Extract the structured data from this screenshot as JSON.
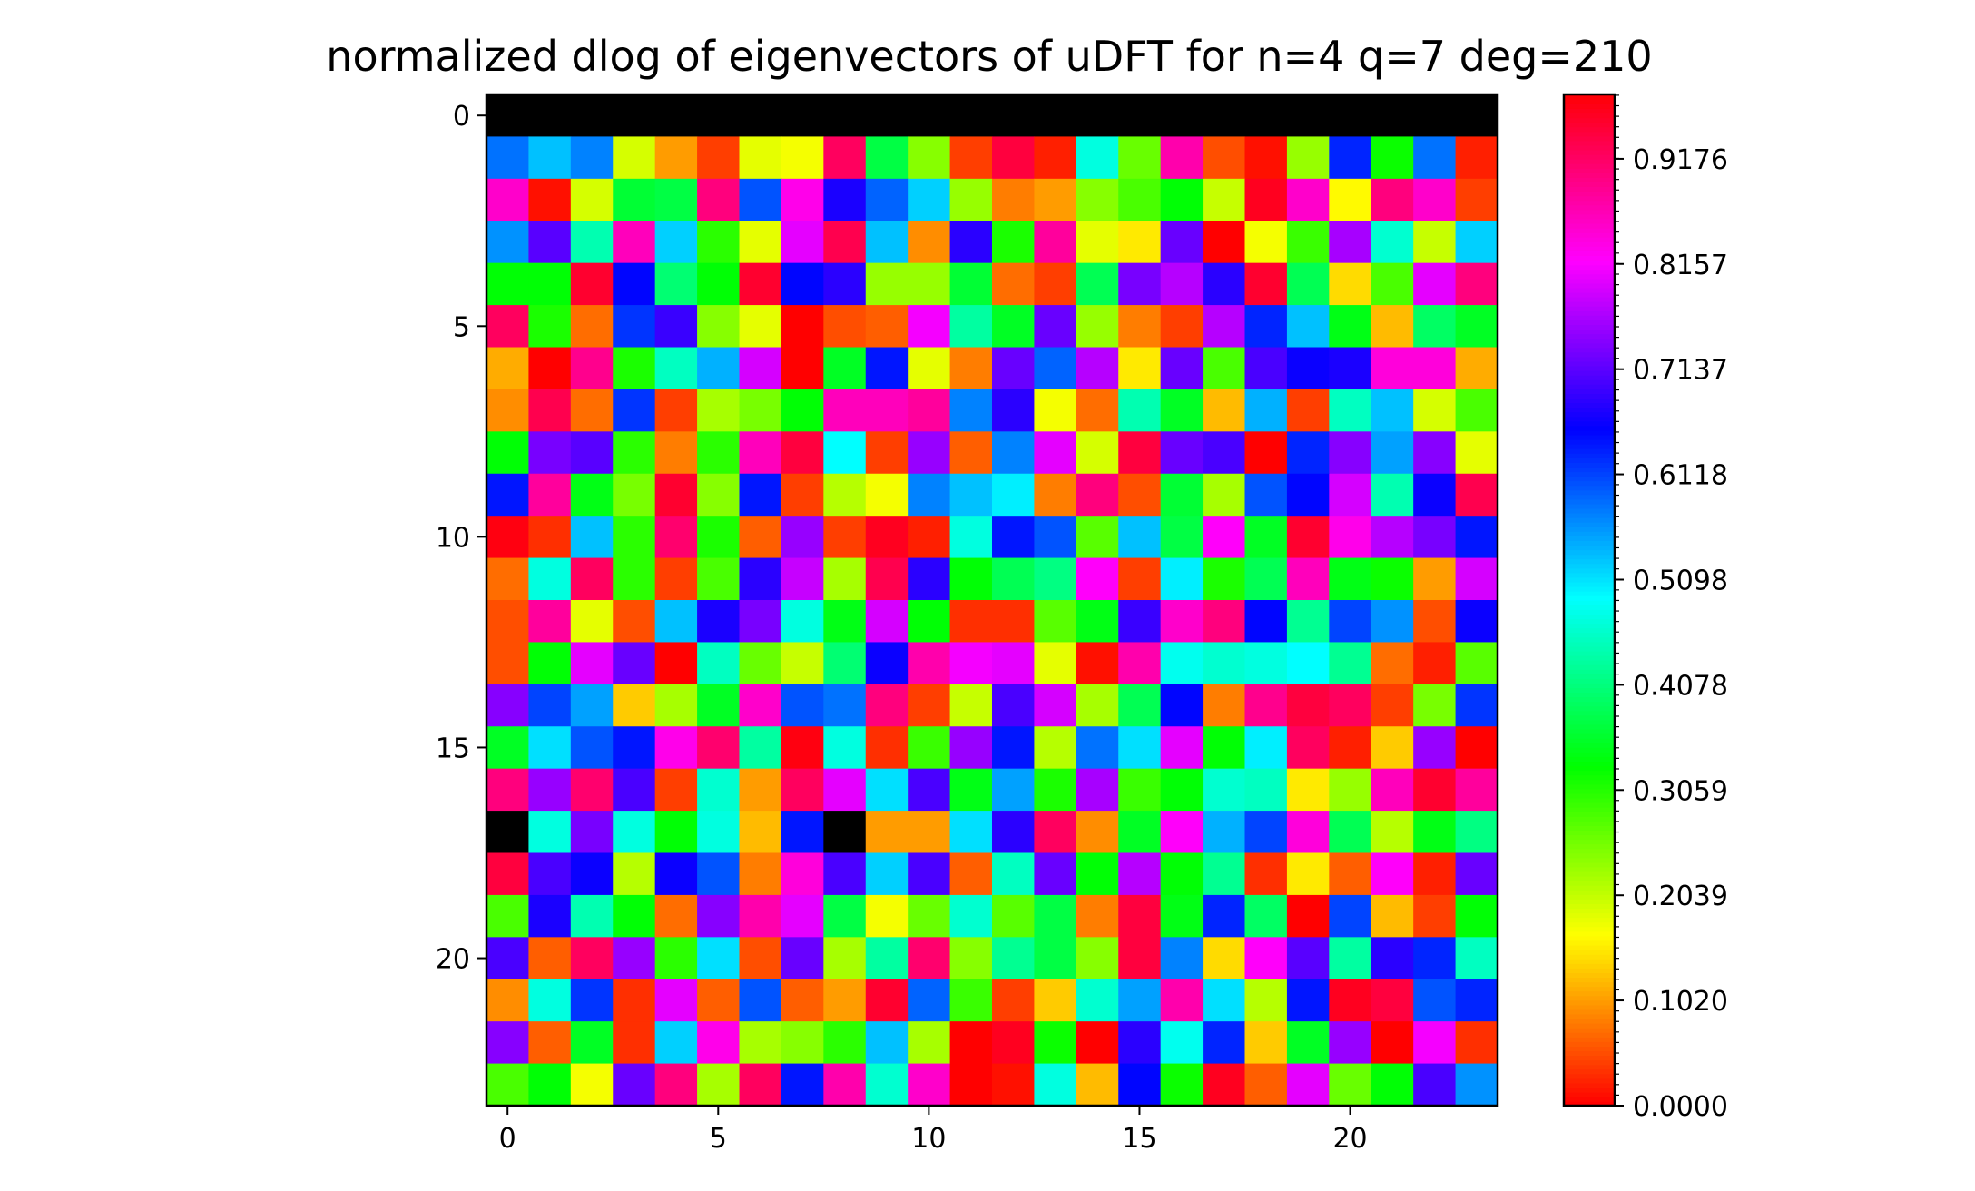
{
  "chart_data": {
    "type": "heatmap",
    "title": "normalized dlog of eigenvectors of uDFT for n=4 q=7 deg=210",
    "rows": 24,
    "cols": 24,
    "x_ticks": [
      "0",
      "5",
      "10",
      "15",
      "20"
    ],
    "y_ticks": [
      "0",
      "5",
      "10",
      "15",
      "20"
    ],
    "colormap": "hsv",
    "colorbar": {
      "range": [
        0,
        0.98
      ],
      "tick_labels": [
        "0.0000",
        "0.1020",
        "0.2039",
        "0.3059",
        "0.4078",
        "0.5098",
        "0.6118",
        "0.7137",
        "0.8157",
        "0.9176"
      ],
      "tick_values": [
        0,
        0.102,
        0.2039,
        0.3059,
        0.4078,
        0.5098,
        0.6118,
        0.7137,
        0.8157,
        0.9176
      ]
    },
    "missing_color": "#000000",
    "values": [
      [
        null,
        null,
        null,
        null,
        null,
        null,
        null,
        null,
        null,
        null,
        null,
        null,
        null,
        null,
        null,
        null,
        null,
        null,
        null,
        null,
        null,
        null,
        null,
        null
      ],
      [
        0.58,
        0.53,
        0.57,
        0.19,
        0.1,
        0.04,
        0.18,
        0.17,
        0.92,
        0.37,
        0.24,
        0.04,
        0.94,
        0.02,
        0.47,
        0.26,
        0.87,
        0.05,
        0.01,
        0.23,
        0.63,
        0.32,
        0.58,
        0.02
      ],
      [
        0.85,
        0.01,
        0.19,
        0.36,
        0.37,
        0.9,
        0.6,
        0.83,
        0.67,
        0.59,
        0.52,
        0.23,
        0.08,
        0.1,
        0.24,
        0.28,
        0.33,
        0.2,
        0.96,
        0.85,
        0.16,
        0.9,
        0.85,
        0.04
      ],
      [
        0.56,
        0.71,
        0.44,
        0.86,
        0.52,
        0.3,
        0.18,
        0.8,
        0.93,
        0.53,
        0.09,
        0.68,
        0.31,
        0.88,
        0.18,
        0.15,
        0.72,
        0.0,
        0.17,
        0.29,
        0.76,
        0.46,
        0.2,
        0.52
      ],
      [
        0.33,
        0.33,
        0.95,
        0.65,
        0.4,
        0.33,
        0.95,
        0.65,
        0.68,
        0.23,
        0.23,
        0.36,
        0.07,
        0.04,
        0.38,
        0.73,
        0.77,
        0.68,
        0.95,
        0.38,
        0.14,
        0.28,
        0.8,
        0.9
      ],
      [
        0.92,
        0.31,
        0.07,
        0.62,
        0.69,
        0.24,
        0.18,
        0.0,
        0.05,
        0.06,
        0.81,
        0.43,
        0.35,
        0.72,
        0.23,
        0.08,
        0.04,
        0.77,
        0.63,
        0.53,
        0.34,
        0.12,
        0.39,
        0.35
      ],
      [
        0.11,
        0.0,
        0.89,
        0.31,
        0.45,
        0.54,
        0.79,
        0.0,
        0.35,
        0.64,
        0.18,
        0.08,
        0.72,
        0.59,
        0.77,
        0.15,
        0.72,
        0.28,
        0.7,
        0.66,
        0.67,
        0.84,
        0.84,
        0.11
      ],
      [
        0.09,
        0.93,
        0.07,
        0.62,
        0.04,
        0.22,
        0.25,
        0.33,
        0.86,
        0.86,
        0.88,
        0.57,
        0.68,
        0.17,
        0.07,
        0.44,
        0.35,
        0.12,
        0.54,
        0.04,
        0.45,
        0.53,
        0.19,
        0.28
      ],
      [
        0.33,
        0.73,
        0.71,
        0.3,
        0.08,
        0.3,
        0.86,
        0.94,
        0.49,
        0.04,
        0.75,
        0.06,
        0.57,
        0.8,
        0.19,
        0.94,
        0.72,
        0.7,
        0.98,
        0.63,
        0.74,
        0.55,
        0.74,
        0.18
      ],
      [
        0.64,
        0.88,
        0.34,
        0.25,
        0.95,
        0.24,
        0.64,
        0.04,
        0.21,
        0.17,
        0.57,
        0.53,
        0.5,
        0.08,
        0.9,
        0.05,
        0.36,
        0.22,
        0.6,
        0.65,
        0.79,
        0.44,
        0.66,
        0.93
      ],
      [
        0.97,
        0.03,
        0.53,
        0.3,
        0.91,
        0.31,
        0.06,
        0.75,
        0.04,
        0.96,
        0.02,
        0.47,
        0.64,
        0.6,
        0.27,
        0.53,
        0.37,
        0.82,
        0.35,
        0.95,
        0.83,
        0.77,
        0.73,
        0.64
      ],
      [
        0.07,
        0.47,
        0.92,
        0.3,
        0.04,
        0.28,
        0.68,
        0.78,
        0.22,
        0.93,
        0.68,
        0.33,
        0.38,
        0.41,
        0.82,
        0.04,
        0.5,
        0.31,
        0.38,
        0.86,
        0.34,
        0.32,
        0.1,
        0.79
      ],
      [
        0.05,
        0.88,
        0.18,
        0.05,
        0.53,
        0.67,
        0.73,
        0.47,
        0.34,
        0.79,
        0.33,
        0.03,
        0.03,
        0.27,
        0.34,
        0.69,
        0.85,
        0.9,
        0.65,
        0.42,
        0.61,
        0.56,
        0.05,
        0.66
      ],
      [
        0.05,
        0.33,
        0.8,
        0.72,
        0.0,
        0.45,
        0.26,
        0.2,
        0.4,
        0.66,
        0.87,
        0.81,
        0.8,
        0.18,
        0.01,
        0.87,
        0.48,
        0.46,
        0.47,
        0.49,
        0.42,
        0.07,
        0.02,
        0.27
      ],
      [
        0.74,
        0.61,
        0.55,
        0.13,
        0.22,
        0.35,
        0.85,
        0.6,
        0.58,
        0.9,
        0.04,
        0.2,
        0.7,
        0.79,
        0.22,
        0.38,
        0.65,
        0.08,
        0.89,
        0.94,
        0.92,
        0.04,
        0.25,
        0.62
      ],
      [
        0.35,
        0.51,
        0.6,
        0.64,
        0.83,
        0.91,
        0.43,
        0.97,
        0.47,
        0.03,
        0.29,
        0.75,
        0.64,
        0.21,
        0.58,
        0.51,
        0.8,
        0.33,
        0.5,
        0.92,
        0.02,
        0.13,
        0.75,
        0.99
      ],
      [
        0.9,
        0.75,
        0.91,
        0.7,
        0.04,
        0.46,
        0.1,
        0.92,
        0.8,
        0.51,
        0.7,
        0.34,
        0.55,
        0.31,
        0.76,
        0.29,
        0.33,
        0.46,
        0.45,
        0.15,
        0.23,
        0.86,
        0.95,
        0.88
      ],
      [
        null,
        0.47,
        0.73,
        0.47,
        0.33,
        0.47,
        0.12,
        0.64,
        null,
        0.1,
        0.1,
        0.51,
        0.68,
        0.92,
        0.09,
        0.35,
        0.82,
        0.54,
        0.61,
        0.84,
        0.38,
        0.21,
        0.34,
        0.41
      ],
      [
        0.94,
        0.7,
        0.66,
        0.21,
        0.66,
        0.6,
        0.08,
        0.84,
        0.7,
        0.52,
        0.7,
        0.06,
        0.45,
        0.72,
        0.33,
        0.77,
        0.33,
        0.42,
        0.03,
        0.15,
        0.06,
        0.82,
        0.02,
        0.72
      ],
      [
        0.28,
        0.67,
        0.44,
        0.33,
        0.07,
        0.74,
        0.87,
        0.8,
        0.37,
        0.17,
        0.26,
        0.46,
        0.27,
        0.37,
        0.08,
        0.94,
        0.34,
        0.63,
        0.39,
        0.98,
        0.61,
        0.12,
        0.04,
        0.33
      ],
      [
        0.7,
        0.06,
        0.92,
        0.75,
        0.3,
        0.51,
        0.05,
        0.72,
        0.22,
        0.43,
        0.91,
        0.24,
        0.42,
        0.37,
        0.24,
        0.94,
        0.57,
        0.14,
        0.82,
        0.71,
        0.43,
        0.68,
        0.63,
        0.45
      ],
      [
        0.09,
        0.47,
        0.62,
        0.03,
        0.8,
        0.06,
        0.6,
        0.06,
        0.1,
        0.95,
        0.59,
        0.29,
        0.04,
        0.13,
        0.46,
        0.55,
        0.87,
        0.51,
        0.21,
        0.64,
        0.96,
        0.94,
        0.6,
        0.63
      ],
      [
        0.74,
        0.06,
        0.35,
        0.03,
        0.52,
        0.83,
        0.22,
        0.24,
        0.3,
        0.53,
        0.22,
        0.98,
        0.96,
        0.32,
        0.0,
        0.68,
        0.48,
        0.63,
        0.13,
        0.35,
        0.75,
        0.0,
        0.81,
        0.03
      ],
      [
        0.28,
        0.33,
        0.17,
        0.72,
        0.9,
        0.22,
        0.92,
        0.64,
        0.87,
        0.46,
        0.85,
        0.98,
        0.01,
        0.47,
        0.12,
        0.65,
        0.32,
        0.96,
        0.06,
        0.8,
        0.26,
        0.33,
        0.7,
        0.56
      ]
    ]
  }
}
